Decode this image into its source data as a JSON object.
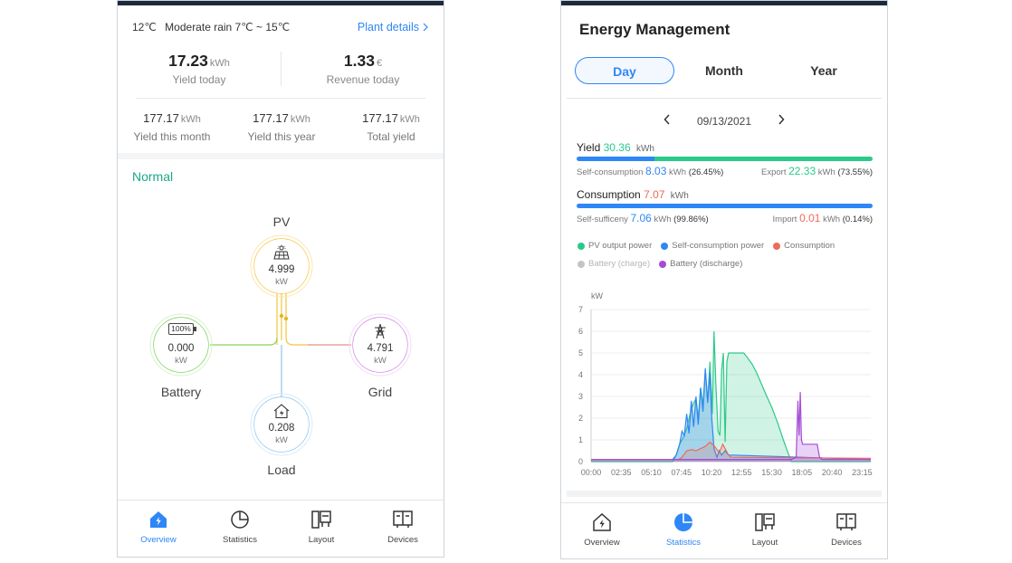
{
  "overview": {
    "weather": {
      "temp": "12℃",
      "desc": "Moderate rain 7℃ ~ 15℃"
    },
    "plant_link": "Plant details",
    "yield_today": {
      "value": "17.23",
      "unit": "kWh",
      "label": "Yield today"
    },
    "revenue_today": {
      "value": "1.33",
      "unit": "€",
      "label": "Revenue today"
    },
    "yield_month": {
      "value": "177.17",
      "unit": "kWh",
      "label": "Yield this month"
    },
    "yield_year": {
      "value": "177.17",
      "unit": "kWh",
      "label": "Yield this year"
    },
    "total_yield": {
      "value": "177.17",
      "unit": "kWh",
      "label": "Total yield"
    },
    "status": "Normal",
    "flow": {
      "pv": {
        "label": "PV",
        "value": "4.999",
        "unit": "kW",
        "icon": "solar-panel-icon"
      },
      "battery": {
        "label": "Battery",
        "value": "0.000",
        "unit": "kW",
        "icon": "battery-icon",
        "level_text": "100%"
      },
      "grid": {
        "label": "Grid",
        "value": "4.791",
        "unit": "kW",
        "icon": "power-tower-icon"
      },
      "load": {
        "label": "Load",
        "value": "0.208",
        "unit": "kW",
        "icon": "house-icon"
      }
    },
    "tabs": [
      {
        "label": "Overview",
        "icon": "home-icon",
        "active": true
      },
      {
        "label": "Statistics",
        "icon": "pie-chart-icon",
        "active": false
      },
      {
        "label": "Layout",
        "icon": "layout-icon",
        "active": false
      },
      {
        "label": "Devices",
        "icon": "devices-icon",
        "active": false
      }
    ]
  },
  "energy": {
    "title": "Energy Management",
    "segments": [
      "Day",
      "Month",
      "Year"
    ],
    "active_segment": "Day",
    "date": "09/13/2021",
    "yield": {
      "label": "Yield",
      "value": "30.36",
      "unit": "kWh",
      "self_label": "Self-consumption",
      "self_value": "8.03",
      "self_unit": "kWh",
      "self_pct": "(26.45%)",
      "export_label": "Export",
      "export_value": "22.33",
      "export_unit": "kWh",
      "export_pct": "(73.55%)",
      "self_fraction": 0.2645
    },
    "consumption": {
      "label": "Consumption",
      "value": "7.07",
      "unit": "kWh",
      "suff_label": "Self-sufficeny",
      "suff_value": "7.06",
      "suff_unit": "kWh",
      "suff_pct": "(99.86%)",
      "import_label": "Import",
      "import_value": "0.01",
      "import_unit": "kWh",
      "import_pct": "(0.14%)",
      "suff_fraction": 0.9986
    },
    "legend": [
      {
        "label": "PV output power",
        "color": "#2bc98a",
        "enabled": true
      },
      {
        "label": "Self-consumption power",
        "color": "#2f86f6",
        "enabled": true
      },
      {
        "label": "Consumption",
        "color": "#ee6a5a",
        "enabled": true
      },
      {
        "label": "Battery (charge)",
        "color": "#c4c4c4",
        "enabled": false
      },
      {
        "label": "Battery (discharge)",
        "color": "#a64bd6",
        "enabled": true
      }
    ],
    "tabs": [
      {
        "label": "Overview",
        "icon": "home-icon",
        "active": false
      },
      {
        "label": "Statistics",
        "icon": "pie-chart-icon",
        "active": true
      },
      {
        "label": "Layout",
        "icon": "layout-icon",
        "active": false
      },
      {
        "label": "Devices",
        "icon": "devices-icon",
        "active": false
      }
    ]
  },
  "chart_data": {
    "type": "area",
    "ylabel": "kW",
    "ylim": [
      0,
      7
    ],
    "yticks": [
      0,
      1,
      2,
      3,
      4,
      5,
      6,
      7
    ],
    "xticks": [
      "00:00",
      "02:35",
      "05:10",
      "07:45",
      "10:20",
      "12:55",
      "15:30",
      "18:05",
      "20:40",
      "23:15"
    ],
    "x_range_hours": [
      0,
      24
    ],
    "grid": true,
    "series": [
      {
        "name": "PV output power",
        "color": "#2bc98a",
        "points": [
          [
            0,
            0
          ],
          [
            7.0,
            0
          ],
          [
            7.3,
            0.3
          ],
          [
            7.6,
            0.8
          ],
          [
            7.9,
            1.1
          ],
          [
            8.2,
            1.5
          ],
          [
            8.5,
            2.2
          ],
          [
            8.8,
            2.7
          ],
          [
            9.0,
            2.9
          ],
          [
            9.2,
            2.0
          ],
          [
            9.4,
            3.4
          ],
          [
            9.6,
            2.6
          ],
          [
            9.8,
            4.2
          ],
          [
            10.0,
            2.8
          ],
          [
            10.2,
            4.6
          ],
          [
            10.4,
            2.2
          ],
          [
            10.55,
            6.0
          ],
          [
            10.7,
            3.6
          ],
          [
            10.9,
            1.4
          ],
          [
            11.05,
            1.2
          ],
          [
            11.2,
            4.2
          ],
          [
            11.35,
            5.0
          ],
          [
            11.5,
            0.9
          ],
          [
            11.65,
            4.6
          ],
          [
            11.8,
            5.0
          ],
          [
            12.0,
            5.0
          ],
          [
            12.4,
            5.0
          ],
          [
            12.8,
            5.0
          ],
          [
            13.1,
            5.0
          ],
          [
            13.4,
            4.8
          ],
          [
            13.8,
            4.5
          ],
          [
            14.2,
            4.1
          ],
          [
            14.6,
            3.6
          ],
          [
            15.0,
            3.1
          ],
          [
            15.5,
            2.5
          ],
          [
            16.0,
            1.8
          ],
          [
            16.5,
            1.0
          ],
          [
            16.9,
            0.4
          ],
          [
            17.2,
            0
          ],
          [
            24,
            0
          ]
        ]
      },
      {
        "name": "Self-consumption power",
        "color": "#2f86f6",
        "points": [
          [
            0,
            0.1
          ],
          [
            7.0,
            0.1
          ],
          [
            7.3,
            0.3
          ],
          [
            7.6,
            0.8
          ],
          [
            7.8,
            1.4
          ],
          [
            8.0,
            1.2
          ],
          [
            8.2,
            2.2
          ],
          [
            8.4,
            1.3
          ],
          [
            8.6,
            2.8
          ],
          [
            8.8,
            1.6
          ],
          [
            9.0,
            3.0
          ],
          [
            9.2,
            1.7
          ],
          [
            9.4,
            3.4
          ],
          [
            9.6,
            2.3
          ],
          [
            9.8,
            4.3
          ],
          [
            10.0,
            2.7
          ],
          [
            10.2,
            4.1
          ],
          [
            10.35,
            2.0
          ],
          [
            10.55,
            0.6
          ],
          [
            10.8,
            0.2
          ],
          [
            11.0,
            0.5
          ],
          [
            11.2,
            0.3
          ],
          [
            11.5,
            0.5
          ],
          [
            11.8,
            0.3
          ],
          [
            12.2,
            0.3
          ],
          [
            24,
            0.1
          ]
        ]
      },
      {
        "name": "Consumption",
        "color": "#ee6a5a",
        "points": [
          [
            0,
            0.1
          ],
          [
            7.5,
            0.1
          ],
          [
            7.8,
            0.2
          ],
          [
            8.2,
            0.5
          ],
          [
            8.6,
            0.55
          ],
          [
            9.0,
            0.5
          ],
          [
            9.4,
            0.6
          ],
          [
            9.8,
            0.7
          ],
          [
            10.2,
            0.9
          ],
          [
            10.6,
            0.7
          ],
          [
            11.0,
            0.4
          ],
          [
            11.3,
            0.8
          ],
          [
            11.6,
            0.5
          ],
          [
            11.8,
            0.3
          ],
          [
            12.0,
            0.2
          ],
          [
            24,
            0.15
          ]
        ]
      },
      {
        "name": "Battery (discharge)",
        "color": "#a64bd6",
        "points": [
          [
            0,
            0.1
          ],
          [
            17.2,
            0.1
          ],
          [
            17.6,
            0.2
          ],
          [
            17.75,
            2.8
          ],
          [
            17.85,
            1.2
          ],
          [
            17.95,
            3.2
          ],
          [
            18.05,
            1.0
          ],
          [
            18.15,
            0.8
          ],
          [
            18.6,
            0.8
          ],
          [
            19.0,
            0.8
          ],
          [
            19.4,
            0.8
          ],
          [
            19.6,
            0.2
          ],
          [
            19.8,
            0.1
          ],
          [
            24,
            0.1
          ]
        ]
      }
    ]
  }
}
